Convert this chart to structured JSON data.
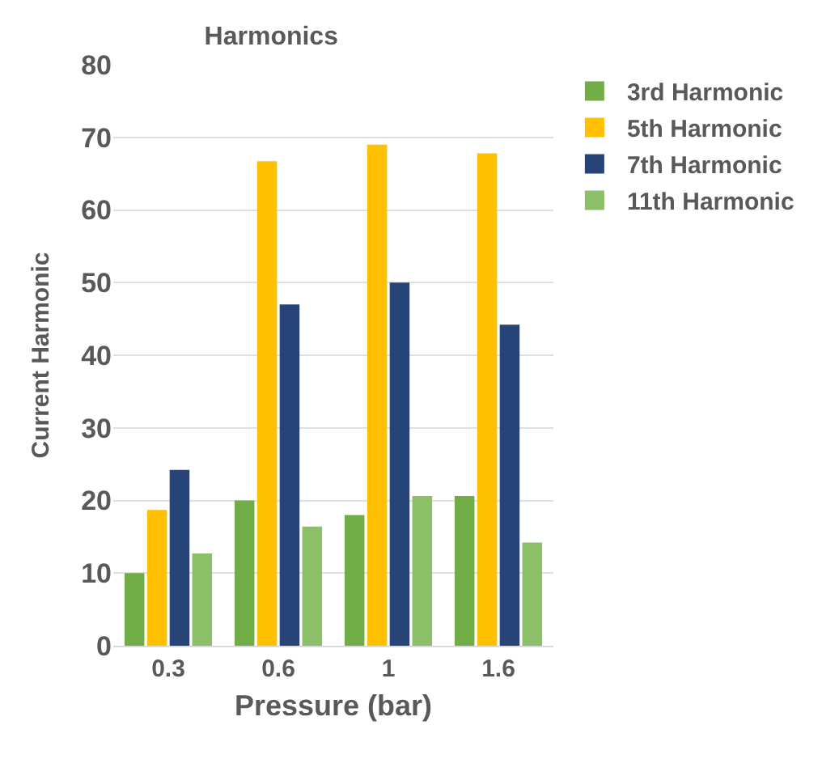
{
  "chart_data": {
    "type": "bar",
    "title": "Harmonics",
    "xlabel": "Pressure (bar)",
    "ylabel": "Current Harmonic",
    "categories": [
      "0.3",
      "0.6",
      "1",
      "1.6"
    ],
    "series": [
      {
        "name": "3rd Harmonic",
        "color": "#70ad47",
        "values": [
          10,
          20,
          18,
          20.6
        ]
      },
      {
        "name": "5th Harmonic",
        "color": "#ffc000",
        "values": [
          18.7,
          66.7,
          69,
          67.8
        ]
      },
      {
        "name": "7th Harmonic",
        "color": "#264478",
        "values": [
          24.2,
          47,
          50,
          44.2
        ]
      },
      {
        "name": "11th Harmonic",
        "color": "#8cc068",
        "values": [
          12.7,
          16.4,
          20.6,
          14.2
        ]
      }
    ],
    "ylim": [
      0,
      80
    ],
    "yticks": [
      0,
      10,
      20,
      30,
      40,
      50,
      60,
      70,
      80
    ],
    "grid": "y",
    "legend": "right"
  }
}
